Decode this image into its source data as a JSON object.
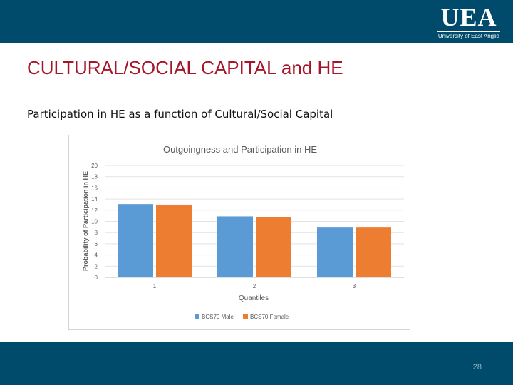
{
  "header": {
    "logo_mark": "UEA",
    "logo_text": "University of East Anglia",
    "brand_color": "#004b6b"
  },
  "slide": {
    "title": "CULTURAL/SOCIAL CAPITAL and HE",
    "subtitle": "Participation in HE as a function of Cultural/Social Capital",
    "title_color": "#a4152a"
  },
  "footer": {
    "page_number": "28"
  },
  "chart_data": {
    "type": "bar",
    "title": "Outgoingness and Participation in HE",
    "xlabel": "Quantiles",
    "ylabel": "Probability of Participation in HE",
    "categories": [
      "1",
      "2",
      "3"
    ],
    "ylim": [
      0,
      20
    ],
    "yticks": [
      "0",
      "2",
      "4",
      "6",
      "8",
      "10",
      "12",
      "14",
      "16",
      "18",
      "20"
    ],
    "grid": true,
    "legend_position": "bottom",
    "series": [
      {
        "name": "BCS70 Male",
        "color": "#5b9bd5",
        "values": [
          13.1,
          10.9,
          8.9
        ]
      },
      {
        "name": "BCS70 Female",
        "color": "#ed7d31",
        "values": [
          13.0,
          10.8,
          8.9
        ]
      }
    ]
  }
}
